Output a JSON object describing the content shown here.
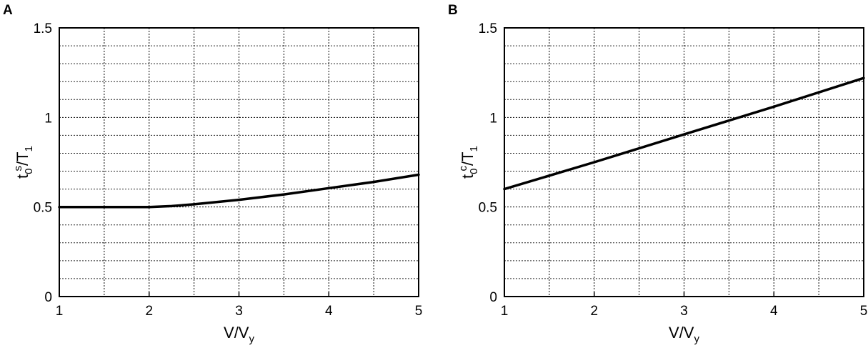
{
  "chart_data": [
    {
      "type": "line",
      "panel": "A",
      "title": "",
      "xlabel": "V/V_y",
      "xlabel_parts": {
        "main": "V/V",
        "sub": "y"
      },
      "ylabel": "t_0^s/T_1",
      "ylabel_parts": {
        "t": "t",
        "sub": "0",
        "sup": "s",
        "rest": "/T",
        "rest_sub": "1"
      },
      "xlim": [
        1,
        5
      ],
      "ylim": [
        0,
        1.5
      ],
      "xticks": [
        "1",
        "2",
        "3",
        "4",
        "5"
      ],
      "yticks": [
        "0",
        "0.5",
        "1",
        "1.5"
      ],
      "grid": true,
      "series": [
        {
          "x": [
            1,
            1.5,
            2,
            2.25,
            2.5,
            3,
            3.5,
            4,
            4.5,
            5
          ],
          "y": [
            0.5,
            0.5,
            0.5,
            0.505,
            0.515,
            0.54,
            0.57,
            0.605,
            0.64,
            0.68
          ]
        }
      ]
    },
    {
      "type": "line",
      "panel": "B",
      "title": "",
      "xlabel": "V/V_y",
      "xlabel_parts": {
        "main": "V/V",
        "sub": "y"
      },
      "ylabel": "t_0^c/T_1",
      "ylabel_parts": {
        "t": "t",
        "sub": "0",
        "sup": "c",
        "rest": "/T",
        "rest_sub": "1"
      },
      "xlim": [
        1,
        5
      ],
      "ylim": [
        0,
        1.5
      ],
      "xticks": [
        "1",
        "2",
        "3",
        "4",
        "5"
      ],
      "yticks": [
        "0",
        "0.5",
        "1",
        "1.5"
      ],
      "grid": true,
      "series": [
        {
          "x": [
            1,
            2,
            3,
            4,
            5
          ],
          "y": [
            0.6,
            0.75,
            0.905,
            1.06,
            1.22
          ]
        }
      ]
    }
  ]
}
